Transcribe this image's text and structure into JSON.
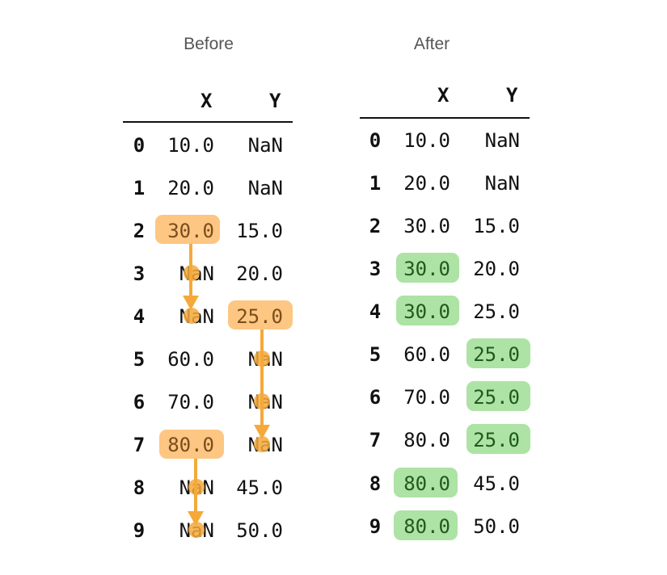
{
  "before": {
    "title": "Before",
    "columns": [
      "X",
      "Y"
    ],
    "rows": [
      {
        "index": "0",
        "x": "10.0",
        "y": "NaN"
      },
      {
        "index": "1",
        "x": "20.0",
        "y": "NaN"
      },
      {
        "index": "2",
        "x": "30.0",
        "y": "15.0"
      },
      {
        "index": "3",
        "x": "NaN",
        "y": "20.0"
      },
      {
        "index": "4",
        "x": "NaN",
        "y": "25.0"
      },
      {
        "index": "5",
        "x": "60.0",
        "y": "NaN"
      },
      {
        "index": "6",
        "x": "70.0",
        "y": "NaN"
      },
      {
        "index": "7",
        "x": "80.0",
        "y": "NaN"
      },
      {
        "index": "8",
        "x": "NaN",
        "y": "45.0"
      },
      {
        "index": "9",
        "x": "NaN",
        "y": "50.0"
      }
    ]
  },
  "after": {
    "title": "After",
    "columns": [
      "X",
      "Y"
    ],
    "rows": [
      {
        "index": "0",
        "x": "10.0",
        "y": "NaN"
      },
      {
        "index": "1",
        "x": "20.0",
        "y": "NaN"
      },
      {
        "index": "2",
        "x": "30.0",
        "y": "15.0"
      },
      {
        "index": "3",
        "x": "30.0",
        "y": "20.0"
      },
      {
        "index": "4",
        "x": "30.0",
        "y": "25.0"
      },
      {
        "index": "5",
        "x": "60.0",
        "y": "25.0"
      },
      {
        "index": "6",
        "x": "70.0",
        "y": "25.0"
      },
      {
        "index": "7",
        "x": "80.0",
        "y": "25.0"
      },
      {
        "index": "8",
        "x": "80.0",
        "y": "45.0"
      },
      {
        "index": "9",
        "x": "80.0",
        "y": "50.0"
      }
    ]
  },
  "colors": {
    "source_highlight": "#fdbc6c",
    "filled_highlight": "#9fde94",
    "arrow": "#f5a93b"
  }
}
